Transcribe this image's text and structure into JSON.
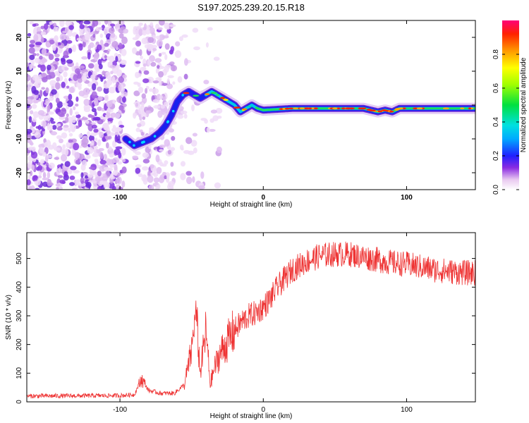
{
  "title": "S197.2025.239.20.15.R18",
  "chart_data": [
    {
      "type": "heatmap",
      "name": "spectrogram",
      "xlabel": "Height of straight line (km)",
      "ylabel": "Frequency (Hz)",
      "xlim": [
        -165,
        148
      ],
      "ylim": [
        -25,
        25
      ],
      "xticks": [
        -100,
        0,
        100
      ],
      "xtick_labels": [
        "-100",
        "0",
        "100"
      ],
      "yticks": [
        -20,
        -10,
        0,
        10,
        20
      ],
      "ytick_labels": [
        "-20",
        "-10",
        "0",
        "10",
        "20"
      ],
      "ridge": {
        "description": "dominant frequency track (Hz) vs height (km)",
        "x": [
          -96,
          -90,
          -84,
          -78,
          -72,
          -68,
          -64,
          -60,
          -56,
          -52,
          -48,
          -44,
          -40,
          -36,
          -32,
          -28,
          -24,
          -20,
          -16,
          -12,
          -8,
          -4,
          0,
          20,
          40,
          60,
          70,
          75,
          80,
          85,
          90,
          95,
          100,
          120,
          148
        ],
        "y": [
          -10,
          -12,
          -11,
          -10,
          -8,
          -6,
          -3,
          1,
          3,
          4,
          3,
          2,
          3,
          4,
          3,
          2,
          1,
          0,
          -2,
          -1,
          0,
          -1,
          -1.5,
          -1,
          -1,
          -1,
          -1,
          -1.5,
          -2,
          -1.5,
          -2,
          -1,
          -1,
          -1,
          -1
        ]
      },
      "colorbar": {
        "label": "Normalized spectral amplitude",
        "range": [
          0,
          1
        ],
        "ticks": [
          0.0,
          0.2,
          0.4,
          0.6,
          0.8
        ],
        "tick_labels": [
          "0.0",
          "0.2",
          "0.4",
          "0.6",
          "0.8"
        ]
      }
    },
    {
      "type": "line",
      "name": "snr",
      "color": "#ee3333",
      "xlabel": "Height of straight line (km)",
      "ylabel": "SNR (10 * v/v)",
      "xlim": [
        -165,
        148
      ],
      "ylim": [
        0,
        590
      ],
      "xticks": [
        -100,
        0,
        100
      ],
      "xtick_labels": [
        "-100",
        "0",
        "100"
      ],
      "yticks": [
        0,
        100,
        200,
        300,
        400,
        500
      ],
      "ytick_labels": [
        "0",
        "100",
        "200",
        "300",
        "400",
        "500"
      ],
      "series": [
        {
          "name": "SNR",
          "x": [
            -165,
            -100,
            -90,
            -85,
            -80,
            -72,
            -62,
            -55,
            -50,
            -47,
            -44,
            -40,
            -37,
            -34,
            -30,
            -25,
            -20,
            -15,
            -10,
            -5,
            0,
            5,
            10,
            15,
            20,
            30,
            40,
            50,
            60,
            70,
            80,
            90,
            100,
            110,
            120,
            130,
            140,
            148
          ],
          "y": [
            20,
            22,
            25,
            80,
            40,
            30,
            30,
            60,
            180,
            320,
            100,
            250,
            60,
            120,
            170,
            210,
            250,
            280,
            300,
            310,
            330,
            360,
            400,
            430,
            460,
            490,
            510,
            515,
            515,
            505,
            495,
            485,
            480,
            470,
            460,
            455,
            450,
            450
          ]
        }
      ]
    }
  ]
}
